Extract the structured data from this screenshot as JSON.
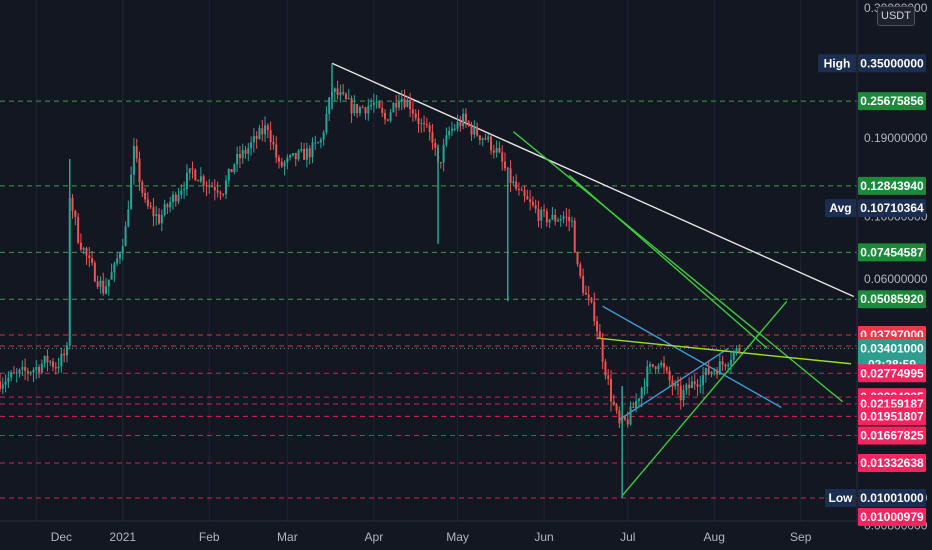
{
  "currency": "USDT",
  "top_axis_partial": "0.30000000",
  "colors": {
    "background": "#131722",
    "up_candle": "#26a69a",
    "down_candle": "#ef5350",
    "green_level": "#4caf50",
    "red_level": "#f23645",
    "magenta_level": "#f7245f",
    "current_price": "#2e9c8f",
    "navy_tag": "#1c2d52",
    "white_trendline": "#e6e6e6",
    "green_trendline": "#3ec93e",
    "blue_trendline": "#3f9ad6",
    "yellowgreen_trendline": "#9bdc28"
  },
  "chart_data": {
    "type": "candlestick",
    "title": "",
    "y_scale": "log",
    "ylim": [
      0.0085,
      0.55
    ],
    "x_tick_labels": [
      "Dec",
      "2021",
      "Feb",
      "Mar",
      "Apr",
      "May",
      "Jun",
      "Jul",
      "Aug",
      "Sep"
    ],
    "y_tick_labels": [
      "0.19000000",
      "0.10000000",
      "0.06000000",
      "0.01000000",
      "0.00800000"
    ],
    "y_ticks": [
      0.19,
      0.1,
      0.06,
      0.01,
      0.008
    ],
    "high": {
      "label": "High",
      "value": "0.35000000"
    },
    "avg": {
      "label": "Avg",
      "value": "0.10710364"
    },
    "low": {
      "label": "Low",
      "value": "0.01001000"
    },
    "current_price": {
      "value": "0.03401000",
      "countdown": "02:28:59"
    },
    "green_levels": [
      "0.25675856",
      "0.12843940",
      "0.07454587",
      "0.05085920"
    ],
    "red_levels": [
      "0.03797000",
      "0.03468858"
    ],
    "magenta_levels": [
      "0.02774995",
      "0.02284235",
      "0.02159187",
      "0.01951807",
      "0.01667825",
      "0.01332638",
      "0.01000979"
    ],
    "price_path": [
      [
        "Nov 18",
        0.026
      ],
      [
        "Dec 1",
        0.029
      ],
      [
        "Dec 5",
        0.031
      ],
      [
        "Dec 8",
        0.0295
      ],
      [
        "Dec 12",
        0.033
      ],
      [
        "Dec 13",
        0.12
      ],
      [
        "Dec 16",
        0.085
      ],
      [
        "Dec 20",
        0.068
      ],
      [
        "Dec 25",
        0.055
      ],
      [
        "Dec 29",
        0.065
      ],
      [
        "2021 Jan 2",
        0.09
      ],
      [
        "Jan 5",
        0.17
      ],
      [
        "Jan 9",
        0.11
      ],
      [
        "Jan 14",
        0.098
      ],
      [
        "Jan 20",
        0.12
      ],
      [
        "Jan 26",
        0.145
      ],
      [
        "Feb 1",
        0.13
      ],
      [
        "Feb 6",
        0.125
      ],
      [
        "Feb 10",
        0.155
      ],
      [
        "Feb 14",
        0.17
      ],
      [
        "Feb 18",
        0.19
      ],
      [
        "Feb 22",
        0.21
      ],
      [
        "Feb 26",
        0.15
      ],
      [
        "Mar 3",
        0.16
      ],
      [
        "Mar 9",
        0.17
      ],
      [
        "Mar 13",
        0.185
      ],
      [
        "Mar 17",
        0.28
      ],
      [
        "Mar 21",
        0.26
      ],
      [
        "Mar 25",
        0.24
      ],
      [
        "Apr 1",
        0.25
      ],
      [
        "Apr 5",
        0.22
      ],
      [
        "Apr 10",
        0.27
      ],
      [
        "Apr 14",
        0.25
      ],
      [
        "Apr 18",
        0.21
      ],
      [
        "Apr 22",
        0.19
      ],
      [
        "Apr 24",
        0.15
      ],
      [
        "Apr 28",
        0.2
      ],
      [
        "May 3",
        0.22
      ],
      [
        "May 7",
        0.2
      ],
      [
        "May 11",
        0.19
      ],
      [
        "May 15",
        0.17
      ],
      [
        "May 19",
        0.14
      ],
      [
        "May 23",
        0.12
      ],
      [
        "May 27",
        0.11
      ],
      [
        "May 31",
        0.1
      ],
      [
        "Jun 4",
        0.098
      ],
      [
        "Jun 8",
        0.1
      ],
      [
        "Jun 11",
        0.095
      ],
      [
        "Jun 13",
        0.065
      ],
      [
        "Jun 16",
        0.052
      ],
      [
        "Jun 19",
        0.045
      ],
      [
        "Jun 22",
        0.032
      ],
      [
        "Jun 25",
        0.023
      ],
      [
        "Jun 28",
        0.018
      ],
      [
        "Jul 1",
        0.019
      ],
      [
        "Jul 4",
        0.022
      ],
      [
        "Jul 8",
        0.028
      ],
      [
        "Jul 12",
        0.031
      ],
      [
        "Jul 16",
        0.026
      ],
      [
        "Jul 20",
        0.023
      ],
      [
        "Jul 25",
        0.026
      ],
      [
        "Jul 30",
        0.028
      ],
      [
        "Aug 4",
        0.03
      ],
      [
        "Aug 8",
        0.033
      ],
      [
        "Aug 11",
        0.034
      ]
    ],
    "trendlines": [
      {
        "color": "white",
        "from": [
          "Mar 17",
          0.35
        ],
        "to": [
          "Sep 20",
          0.052
        ]
      },
      {
        "color": "green",
        "from": [
          "May 21",
          0.2
        ],
        "to": [
          "Sep 16",
          0.022
        ]
      },
      {
        "color": "green",
        "from": [
          "Jun 10",
          0.14
        ],
        "to": [
          "Aug 20",
          0.034
        ]
      },
      {
        "color": "green",
        "from": [
          "Jun 29",
          0.0102
        ],
        "to": [
          "Aug 27",
          0.05
        ]
      },
      {
        "color": "blue",
        "from": [
          "Jun 22",
          0.048
        ],
        "to": [
          "Aug 25",
          0.021
        ]
      },
      {
        "color": "blue",
        "from": [
          "Jun 28",
          0.019
        ],
        "to": [
          "Aug 6",
          0.034
        ]
      },
      {
        "color": "yellowgreen",
        "from": [
          "Jun 20",
          0.037
        ],
        "to": [
          "Sep 19",
          0.03
        ]
      }
    ]
  }
}
